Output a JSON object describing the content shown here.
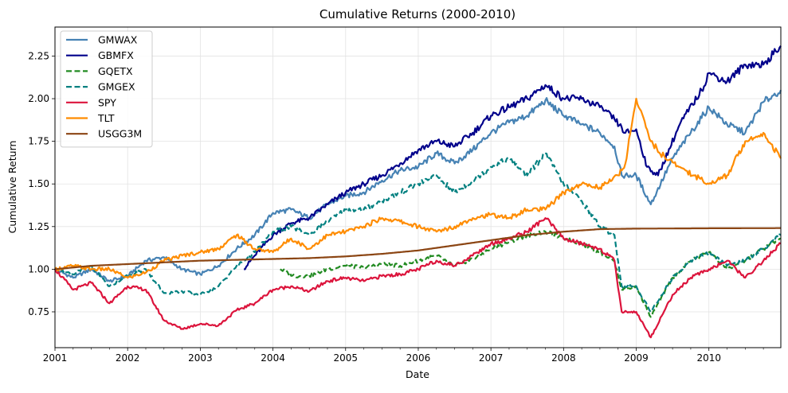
{
  "chart_data": {
    "type": "line",
    "title": "Cumulative Returns (2000-2010)",
    "xlabel": "Date",
    "ylabel": "Cumulative Return",
    "xlim": [
      2001.0,
      2010.99
    ],
    "ylim": [
      0.54,
      2.42
    ],
    "x_ticks": [
      2001,
      2002,
      2003,
      2004,
      2005,
      2006,
      2007,
      2008,
      2009,
      2010
    ],
    "x_tick_labels": [
      "2001",
      "2002",
      "2003",
      "2004",
      "2005",
      "2006",
      "2007",
      "2008",
      "2009",
      "2010"
    ],
    "y_ticks": [
      0.75,
      1.0,
      1.25,
      1.5,
      1.75,
      2.0,
      2.25
    ],
    "y_tick_labels": [
      "0.75",
      "1.00",
      "1.25",
      "1.50",
      "1.75",
      "2.00",
      "2.25"
    ],
    "grid": true,
    "legend_position": "top-left",
    "series": [
      {
        "name": "GMWAX",
        "color": "#4682b4",
        "dash": "solid",
        "points": [
          [
            2001.0,
            1.0
          ],
          [
            2001.25,
            0.95
          ],
          [
            2001.5,
            1.0
          ],
          [
            2001.75,
            0.93
          ],
          [
            2002.0,
            0.96
          ],
          [
            2002.25,
            1.05
          ],
          [
            2002.5,
            1.07
          ],
          [
            2002.75,
            1.0
          ],
          [
            2003.0,
            0.97
          ],
          [
            2003.25,
            1.02
          ],
          [
            2003.5,
            1.12
          ],
          [
            2003.75,
            1.2
          ],
          [
            2004.0,
            1.33
          ],
          [
            2004.25,
            1.35
          ],
          [
            2004.5,
            1.3
          ],
          [
            2004.75,
            1.38
          ],
          [
            2005.0,
            1.43
          ],
          [
            2005.25,
            1.45
          ],
          [
            2005.5,
            1.52
          ],
          [
            2005.75,
            1.58
          ],
          [
            2006.0,
            1.6
          ],
          [
            2006.25,
            1.68
          ],
          [
            2006.5,
            1.62
          ],
          [
            2006.75,
            1.7
          ],
          [
            2007.0,
            1.8
          ],
          [
            2007.25,
            1.86
          ],
          [
            2007.5,
            1.9
          ],
          [
            2007.75,
            1.99
          ],
          [
            2008.0,
            1.9
          ],
          [
            2008.25,
            1.85
          ],
          [
            2008.5,
            1.8
          ],
          [
            2008.7,
            1.72
          ],
          [
            2008.8,
            1.55
          ],
          [
            2009.0,
            1.55
          ],
          [
            2009.2,
            1.38
          ],
          [
            2009.5,
            1.65
          ],
          [
            2009.75,
            1.8
          ],
          [
            2010.0,
            1.95
          ],
          [
            2010.25,
            1.85
          ],
          [
            2010.5,
            1.8
          ],
          [
            2010.75,
            1.98
          ],
          [
            2010.99,
            2.05
          ]
        ]
      },
      {
        "name": "GBMFX",
        "color": "#00008b",
        "dash": "solid",
        "points": [
          [
            2003.6,
            1.0
          ],
          [
            2003.75,
            1.08
          ],
          [
            2004.0,
            1.2
          ],
          [
            2004.25,
            1.27
          ],
          [
            2004.5,
            1.3
          ],
          [
            2004.75,
            1.38
          ],
          [
            2005.0,
            1.45
          ],
          [
            2005.25,
            1.5
          ],
          [
            2005.5,
            1.55
          ],
          [
            2005.75,
            1.62
          ],
          [
            2006.0,
            1.7
          ],
          [
            2006.25,
            1.75
          ],
          [
            2006.5,
            1.72
          ],
          [
            2006.75,
            1.8
          ],
          [
            2007.0,
            1.9
          ],
          [
            2007.25,
            1.95
          ],
          [
            2007.5,
            2.0
          ],
          [
            2007.75,
            2.08
          ],
          [
            2008.0,
            2.0
          ],
          [
            2008.25,
            2.0
          ],
          [
            2008.5,
            1.95
          ],
          [
            2008.7,
            1.88
          ],
          [
            2008.85,
            1.8
          ],
          [
            2009.0,
            1.82
          ],
          [
            2009.15,
            1.6
          ],
          [
            2009.3,
            1.55
          ],
          [
            2009.6,
            1.85
          ],
          [
            2009.9,
            2.05
          ],
          [
            2010.0,
            2.15
          ],
          [
            2010.25,
            2.1
          ],
          [
            2010.5,
            2.2
          ],
          [
            2010.75,
            2.2
          ],
          [
            2010.99,
            2.31
          ]
        ]
      },
      {
        "name": "GQETX",
        "color": "#228b22",
        "dash": "dashed",
        "points": [
          [
            2004.1,
            1.0
          ],
          [
            2004.3,
            0.96
          ],
          [
            2004.5,
            0.96
          ],
          [
            2004.75,
            1.0
          ],
          [
            2005.0,
            1.02
          ],
          [
            2005.25,
            1.01
          ],
          [
            2005.5,
            1.03
          ],
          [
            2005.75,
            1.02
          ],
          [
            2006.0,
            1.05
          ],
          [
            2006.25,
            1.08
          ],
          [
            2006.5,
            1.02
          ],
          [
            2006.75,
            1.06
          ],
          [
            2007.0,
            1.12
          ],
          [
            2007.25,
            1.16
          ],
          [
            2007.5,
            1.2
          ],
          [
            2007.75,
            1.22
          ],
          [
            2008.0,
            1.18
          ],
          [
            2008.25,
            1.15
          ],
          [
            2008.5,
            1.1
          ],
          [
            2008.7,
            1.05
          ],
          [
            2008.8,
            0.88
          ],
          [
            2009.0,
            0.9
          ],
          [
            2009.2,
            0.72
          ],
          [
            2009.5,
            0.95
          ],
          [
            2009.75,
            1.05
          ],
          [
            2010.0,
            1.1
          ],
          [
            2010.25,
            1.0
          ],
          [
            2010.5,
            1.05
          ],
          [
            2010.75,
            1.12
          ],
          [
            2010.99,
            1.18
          ]
        ]
      },
      {
        "name": "GMGEX",
        "color": "#008080",
        "dash": "dashed",
        "points": [
          [
            2001.0,
            1.0
          ],
          [
            2001.25,
            0.97
          ],
          [
            2001.5,
            1.02
          ],
          [
            2001.75,
            0.9
          ],
          [
            2002.0,
            0.96
          ],
          [
            2002.25,
            1.0
          ],
          [
            2002.5,
            0.86
          ],
          [
            2002.75,
            0.87
          ],
          [
            2003.0,
            0.85
          ],
          [
            2003.25,
            0.9
          ],
          [
            2003.5,
            1.02
          ],
          [
            2003.75,
            1.1
          ],
          [
            2004.0,
            1.22
          ],
          [
            2004.25,
            1.25
          ],
          [
            2004.5,
            1.2
          ],
          [
            2004.75,
            1.28
          ],
          [
            2005.0,
            1.35
          ],
          [
            2005.25,
            1.35
          ],
          [
            2005.5,
            1.4
          ],
          [
            2005.75,
            1.45
          ],
          [
            2006.0,
            1.5
          ],
          [
            2006.25,
            1.55
          ],
          [
            2006.5,
            1.45
          ],
          [
            2006.75,
            1.52
          ],
          [
            2007.0,
            1.6
          ],
          [
            2007.25,
            1.65
          ],
          [
            2007.5,
            1.55
          ],
          [
            2007.75,
            1.68
          ],
          [
            2008.0,
            1.5
          ],
          [
            2008.25,
            1.4
          ],
          [
            2008.5,
            1.25
          ],
          [
            2008.7,
            1.2
          ],
          [
            2008.8,
            0.9
          ],
          [
            2009.0,
            0.9
          ],
          [
            2009.2,
            0.75
          ],
          [
            2009.5,
            0.95
          ],
          [
            2009.75,
            1.05
          ],
          [
            2010.0,
            1.1
          ],
          [
            2010.25,
            1.02
          ],
          [
            2010.5,
            1.05
          ],
          [
            2010.75,
            1.12
          ],
          [
            2010.99,
            1.2
          ]
        ]
      },
      {
        "name": "SPY",
        "color": "#dc143c",
        "dash": "solid",
        "points": [
          [
            2001.0,
            1.0
          ],
          [
            2001.25,
            0.88
          ],
          [
            2001.5,
            0.92
          ],
          [
            2001.75,
            0.8
          ],
          [
            2002.0,
            0.9
          ],
          [
            2002.25,
            0.88
          ],
          [
            2002.5,
            0.7
          ],
          [
            2002.75,
            0.65
          ],
          [
            2003.0,
            0.68
          ],
          [
            2003.25,
            0.67
          ],
          [
            2003.5,
            0.76
          ],
          [
            2003.75,
            0.8
          ],
          [
            2004.0,
            0.88
          ],
          [
            2004.25,
            0.9
          ],
          [
            2004.5,
            0.87
          ],
          [
            2004.75,
            0.93
          ],
          [
            2005.0,
            0.95
          ],
          [
            2005.25,
            0.93
          ],
          [
            2005.5,
            0.96
          ],
          [
            2005.75,
            0.97
          ],
          [
            2006.0,
            1.0
          ],
          [
            2006.25,
            1.05
          ],
          [
            2006.5,
            1.02
          ],
          [
            2006.75,
            1.08
          ],
          [
            2007.0,
            1.15
          ],
          [
            2007.25,
            1.18
          ],
          [
            2007.5,
            1.22
          ],
          [
            2007.75,
            1.3
          ],
          [
            2008.0,
            1.18
          ],
          [
            2008.25,
            1.15
          ],
          [
            2008.5,
            1.12
          ],
          [
            2008.7,
            1.05
          ],
          [
            2008.8,
            0.75
          ],
          [
            2009.0,
            0.75
          ],
          [
            2009.2,
            0.6
          ],
          [
            2009.5,
            0.85
          ],
          [
            2009.75,
            0.95
          ],
          [
            2010.0,
            1.0
          ],
          [
            2010.25,
            1.05
          ],
          [
            2010.5,
            0.95
          ],
          [
            2010.75,
            1.05
          ],
          [
            2010.99,
            1.15
          ]
        ]
      },
      {
        "name": "TLT",
        "color": "#ff8c00",
        "dash": "solid",
        "points": [
          [
            2001.0,
            1.0
          ],
          [
            2001.25,
            1.02
          ],
          [
            2001.5,
            1.0
          ],
          [
            2001.75,
            1.0
          ],
          [
            2002.0,
            0.95
          ],
          [
            2002.25,
            0.98
          ],
          [
            2002.5,
            1.05
          ],
          [
            2002.75,
            1.08
          ],
          [
            2003.0,
            1.1
          ],
          [
            2003.25,
            1.12
          ],
          [
            2003.5,
            1.2
          ],
          [
            2003.75,
            1.12
          ],
          [
            2004.0,
            1.1
          ],
          [
            2004.25,
            1.18
          ],
          [
            2004.5,
            1.12
          ],
          [
            2004.75,
            1.2
          ],
          [
            2005.0,
            1.22
          ],
          [
            2005.25,
            1.25
          ],
          [
            2005.5,
            1.3
          ],
          [
            2005.75,
            1.28
          ],
          [
            2006.0,
            1.25
          ],
          [
            2006.25,
            1.22
          ],
          [
            2006.5,
            1.25
          ],
          [
            2006.75,
            1.3
          ],
          [
            2007.0,
            1.32
          ],
          [
            2007.25,
            1.3
          ],
          [
            2007.5,
            1.35
          ],
          [
            2007.75,
            1.35
          ],
          [
            2008.0,
            1.45
          ],
          [
            2008.25,
            1.5
          ],
          [
            2008.5,
            1.48
          ],
          [
            2008.75,
            1.55
          ],
          [
            2008.85,
            1.62
          ],
          [
            2009.0,
            2.0
          ],
          [
            2009.2,
            1.75
          ],
          [
            2009.4,
            1.65
          ],
          [
            2009.6,
            1.6
          ],
          [
            2009.8,
            1.55
          ],
          [
            2010.0,
            1.5
          ],
          [
            2010.25,
            1.55
          ],
          [
            2010.5,
            1.75
          ],
          [
            2010.75,
            1.8
          ],
          [
            2010.99,
            1.65
          ]
        ]
      },
      {
        "name": "USGG3M",
        "color": "#8b4513",
        "dash": "solid",
        "points": [
          [
            2001.0,
            1.0
          ],
          [
            2001.5,
            1.02
          ],
          [
            2002.0,
            1.03
          ],
          [
            2002.5,
            1.04
          ],
          [
            2003.0,
            1.05
          ],
          [
            2003.5,
            1.055
          ],
          [
            2004.0,
            1.06
          ],
          [
            2004.5,
            1.065
          ],
          [
            2005.0,
            1.075
          ],
          [
            2005.5,
            1.09
          ],
          [
            2006.0,
            1.11
          ],
          [
            2006.5,
            1.14
          ],
          [
            2007.0,
            1.17
          ],
          [
            2007.5,
            1.2
          ],
          [
            2008.0,
            1.22
          ],
          [
            2008.5,
            1.235
          ],
          [
            2009.0,
            1.238
          ],
          [
            2010.0,
            1.24
          ],
          [
            2010.99,
            1.241
          ]
        ]
      }
    ]
  }
}
